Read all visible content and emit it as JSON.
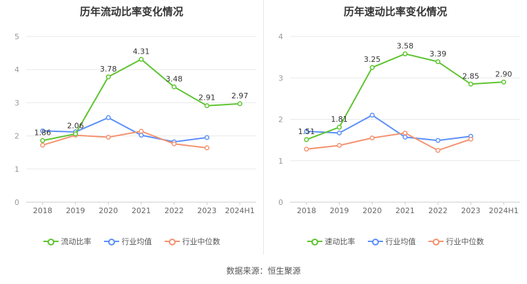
{
  "source_label": "数据来源：恒生聚源",
  "colors": {
    "main": "#5dc42f",
    "avg": "#5b8ff9",
    "median": "#f4926f",
    "grid": "#e8e8e8",
    "axis": "#999999"
  },
  "chart_data": [
    {
      "type": "line",
      "title": "历年流动比率变化情况",
      "categories": [
        "2018",
        "2019",
        "2020",
        "2021",
        "2022",
        "2023",
        "2024H1"
      ],
      "ylim": [
        0,
        5
      ],
      "yticks": [
        "0",
        "1",
        "2",
        "3",
        "4",
        "5"
      ],
      "grid": true,
      "legend": "bottom",
      "series": [
        {
          "name": "流动比率",
          "role": "main",
          "values": [
            1.86,
            2.06,
            3.78,
            4.31,
            3.48,
            2.91,
            2.97
          ],
          "labels": [
            "1.86",
            "2.06",
            "3.78",
            "4.31",
            "3.48",
            "2.91",
            "2.97"
          ]
        },
        {
          "name": "行业均值",
          "role": "avg",
          "values": [
            2.15,
            2.12,
            2.55,
            2.02,
            1.82,
            1.95,
            null
          ]
        },
        {
          "name": "行业中位数",
          "role": "median",
          "values": [
            1.72,
            2.02,
            1.96,
            2.14,
            1.76,
            1.64,
            null
          ]
        }
      ]
    },
    {
      "type": "line",
      "title": "历年速动比率变化情况",
      "categories": [
        "2018",
        "2019",
        "2020",
        "2021",
        "2022",
        "2023",
        "2024H1"
      ],
      "ylim": [
        0,
        4
      ],
      "yticks": [
        "0",
        "1",
        "2",
        "3",
        "4"
      ],
      "grid": true,
      "legend": "bottom",
      "series": [
        {
          "name": "速动比率",
          "role": "main",
          "values": [
            1.51,
            1.81,
            3.25,
            3.58,
            3.39,
            2.85,
            2.9
          ],
          "labels": [
            "1.51",
            "1.81",
            "3.25",
            "3.58",
            "3.39",
            "2.85",
            "2.90"
          ]
        },
        {
          "name": "行业均值",
          "role": "avg",
          "values": [
            1.71,
            1.67,
            2.1,
            1.57,
            1.49,
            1.59,
            null
          ]
        },
        {
          "name": "行业中位数",
          "role": "median",
          "values": [
            1.28,
            1.37,
            1.55,
            1.67,
            1.25,
            1.52,
            null
          ]
        }
      ]
    }
  ]
}
